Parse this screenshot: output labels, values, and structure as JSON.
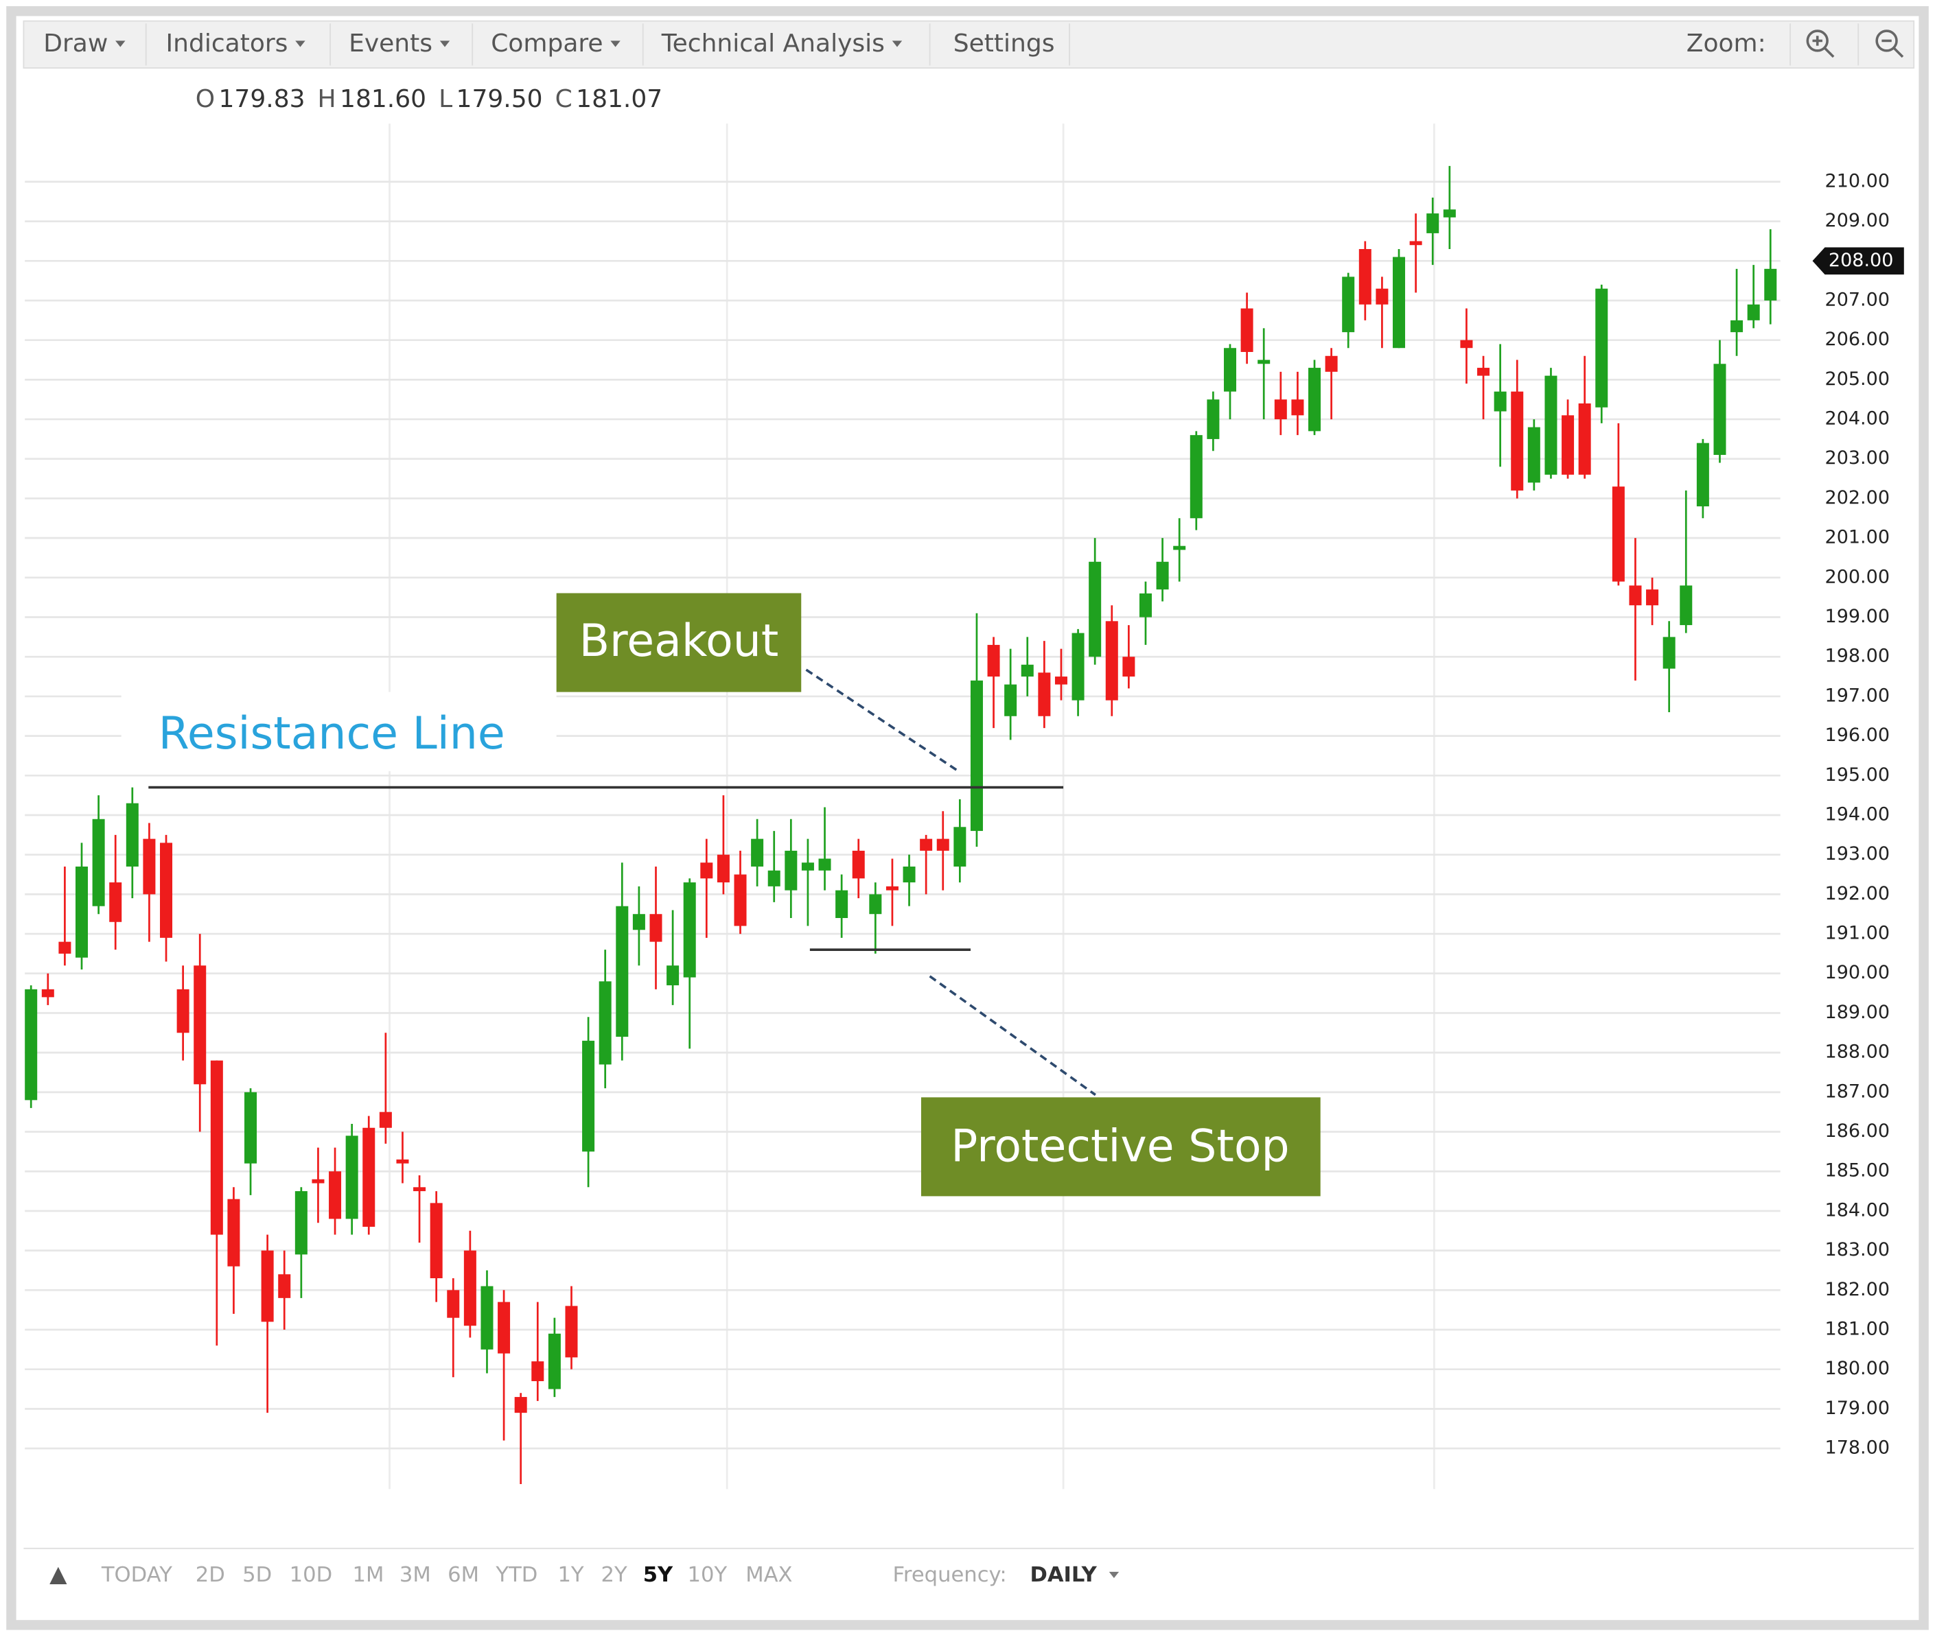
{
  "toolbar": {
    "menus": [
      "Draw",
      "Indicators",
      "Events",
      "Compare",
      "Technical Analysis",
      "Settings"
    ],
    "zoom_label": "Zoom:"
  },
  "chart_data": {
    "type": "candlestick",
    "ohlc_readout": [
      {
        "label": "O",
        "value": "179.83"
      },
      {
        "label": "H",
        "value": "181.60"
      },
      {
        "label": "L",
        "value": "179.50"
      },
      {
        "label": "C",
        "value": "181.07"
      }
    ],
    "up_color": "#1fa11f",
    "down_color": "#ee1c1c",
    "open": [
      186.8,
      189.6,
      190.8,
      190.4,
      191.7,
      192.3,
      192.7,
      193.4,
      193.3,
      189.6,
      190.2,
      187.8,
      184.3,
      185.2,
      183.0,
      182.4,
      182.9,
      184.8,
      185.0,
      183.8,
      186.1,
      186.5,
      185.3,
      184.6,
      184.2,
      182.0,
      183.0,
      180.5,
      181.7,
      179.3,
      180.2,
      179.5,
      181.6,
      185.5,
      187.7,
      188.4,
      191.1,
      191.5,
      189.7,
      189.9,
      192.8,
      193.0,
      192.5,
      192.7,
      192.2,
      192.1,
      192.6,
      192.6,
      191.4,
      193.1,
      191.5,
      192.2,
      192.3,
      193.4,
      193.4,
      192.7,
      193.6,
      198.3,
      196.5,
      197.5,
      197.6,
      197.5,
      196.9,
      198.0,
      198.9,
      198.0,
      199.0,
      199.7,
      200.7,
      201.5,
      203.5,
      204.7,
      206.8,
      205.4,
      204.5,
      204.5,
      203.7,
      205.6,
      206.2,
      208.3,
      207.3,
      205.8,
      208.5,
      208.7,
      209.1,
      206.0,
      205.3,
      204.2,
      204.7,
      202.4,
      202.6,
      204.1,
      204.4,
      204.3,
      202.3,
      199.8,
      199.7,
      197.7,
      198.8,
      201.8,
      203.1,
      206.2,
      206.5,
      207.0
    ],
    "high": [
      189.7,
      190.0,
      192.7,
      193.3,
      194.5,
      193.5,
      194.7,
      193.8,
      193.5,
      190.2,
      191.0,
      187.8,
      184.6,
      187.1,
      183.4,
      183.0,
      184.6,
      185.6,
      185.6,
      186.2,
      186.4,
      188.5,
      186.0,
      184.9,
      184.5,
      182.3,
      183.5,
      182.5,
      182.0,
      179.4,
      181.7,
      181.3,
      182.1,
      188.9,
      190.6,
      192.8,
      192.2,
      192.7,
      191.6,
      192.4,
      193.4,
      194.5,
      193.1,
      193.9,
      193.6,
      193.9,
      193.4,
      194.2,
      192.5,
      193.4,
      192.3,
      192.9,
      193.0,
      193.5,
      194.1,
      194.4,
      199.1,
      198.5,
      198.2,
      198.5,
      198.4,
      198.2,
      198.7,
      201.0,
      199.3,
      198.8,
      199.9,
      201.0,
      201.5,
      203.7,
      204.7,
      205.9,
      207.2,
      206.3,
      205.2,
      205.2,
      205.5,
      205.8,
      207.7,
      208.5,
      207.6,
      208.3,
      209.2,
      209.6,
      210.4,
      206.8,
      205.6,
      205.9,
      205.5,
      204.0,
      205.3,
      204.5,
      205.6,
      207.4,
      203.9,
      201.0,
      200.0,
      198.9,
      202.2,
      203.5,
      206.0,
      207.8,
      207.9,
      208.8
    ],
    "low": [
      186.6,
      189.2,
      190.2,
      190.1,
      191.5,
      190.6,
      191.9,
      190.8,
      190.3,
      187.8,
      186.0,
      180.6,
      181.4,
      184.4,
      178.9,
      181.0,
      181.8,
      183.7,
      183.4,
      183.4,
      183.4,
      185.7,
      184.7,
      183.2,
      181.7,
      179.8,
      180.8,
      179.9,
      178.2,
      177.1,
      179.2,
      179.3,
      180.0,
      184.6,
      187.1,
      187.8,
      190.2,
      189.6,
      189.2,
      188.1,
      190.9,
      192.0,
      191.0,
      192.2,
      191.8,
      191.4,
      191.2,
      192.1,
      190.9,
      191.9,
      190.5,
      191.2,
      191.7,
      192.0,
      192.1,
      192.3,
      193.2,
      196.2,
      195.9,
      197.0,
      196.2,
      196.9,
      196.5,
      197.8,
      196.5,
      197.2,
      198.3,
      199.4,
      199.9,
      201.2,
      203.2,
      204.0,
      205.4,
      204.0,
      203.6,
      203.6,
      203.6,
      204.0,
      205.8,
      206.5,
      205.8,
      205.8,
      207.2,
      207.9,
      208.3,
      204.9,
      204.0,
      202.8,
      202.0,
      202.2,
      202.5,
      202.5,
      202.5,
      203.9,
      199.8,
      197.4,
      198.8,
      196.6,
      198.6,
      201.5,
      202.9,
      205.6,
      206.3,
      206.4
    ],
    "close": [
      189.6,
      189.4,
      190.5,
      192.7,
      193.9,
      191.3,
      194.3,
      192.0,
      190.9,
      188.5,
      187.2,
      183.4,
      182.6,
      187.0,
      181.2,
      181.8,
      184.5,
      184.7,
      183.8,
      185.9,
      183.6,
      186.1,
      185.2,
      184.5,
      182.3,
      181.3,
      181.1,
      182.1,
      180.4,
      178.9,
      179.7,
      180.9,
      180.3,
      188.3,
      189.8,
      191.7,
      191.5,
      190.8,
      190.2,
      192.3,
      192.4,
      192.3,
      191.2,
      193.4,
      192.6,
      193.1,
      192.8,
      192.9,
      192.1,
      192.4,
      192.0,
      192.1,
      192.7,
      193.1,
      193.1,
      193.7,
      197.4,
      197.5,
      197.3,
      197.8,
      196.5,
      197.3,
      198.6,
      200.4,
      196.9,
      197.5,
      199.6,
      200.4,
      200.8,
      203.6,
      204.5,
      205.8,
      205.7,
      205.5,
      204.0,
      204.1,
      205.3,
      205.2,
      207.6,
      206.9,
      206.9,
      208.1,
      208.4,
      209.2,
      209.3,
      205.8,
      205.1,
      204.7,
      202.2,
      203.8,
      205.1,
      202.6,
      202.6,
      207.3,
      199.9,
      199.3,
      199.3,
      198.5,
      199.8,
      203.4,
      205.4,
      206.5,
      206.9,
      207.8
    ],
    "ylim": [
      177.13,
      211.47
    ],
    "yticks": [
      {
        "value": 210,
        "label": "210.00"
      },
      {
        "value": 209,
        "label": "209.00"
      },
      {
        "value": 207,
        "label": "207.00"
      },
      {
        "value": 206,
        "label": "206.00"
      },
      {
        "value": 205,
        "label": "205.00"
      },
      {
        "value": 204,
        "label": "204.00"
      },
      {
        "value": 203,
        "label": "203.00"
      },
      {
        "value": 202,
        "label": "202.00"
      },
      {
        "value": 201,
        "label": "201.00"
      },
      {
        "value": 200,
        "label": "200.00"
      },
      {
        "value": 199,
        "label": "199.00"
      },
      {
        "value": 198,
        "label": "198.00"
      },
      {
        "value": 197,
        "label": "197.00"
      },
      {
        "value": 196,
        "label": "196.00"
      },
      {
        "value": 195,
        "label": "195.00"
      },
      {
        "value": 194,
        "label": "194.00"
      },
      {
        "value": 193,
        "label": "193.00"
      },
      {
        "value": 192,
        "label": "192.00"
      },
      {
        "value": 191,
        "label": "191.00"
      },
      {
        "value": 190,
        "label": "190.00"
      },
      {
        "value": 189,
        "label": "189.00"
      },
      {
        "value": 188,
        "label": "188.00"
      },
      {
        "value": 187,
        "label": "187.00"
      },
      {
        "value": 186,
        "label": "186.00"
      },
      {
        "value": 185,
        "label": "185.00"
      },
      {
        "value": 184,
        "label": "184.00"
      },
      {
        "value": 183,
        "label": "183.00"
      },
      {
        "value": 182,
        "label": "182.00"
      },
      {
        "value": 181,
        "label": "181.00"
      },
      {
        "value": 180,
        "label": "180.00"
      },
      {
        "value": 179,
        "label": "179.00"
      },
      {
        "value": 178,
        "label": "178.00"
      }
    ],
    "last_price": {
      "value": 208,
      "label": "208.00"
    },
    "grid": true,
    "annotations": [
      {
        "text": "Resistance Line",
        "value": 194.7
      },
      {
        "text": "Breakout"
      },
      {
        "text": "Protective Stop",
        "value": 190.6
      }
    ]
  },
  "footer": {
    "ranges": [
      {
        "label": "TODAY",
        "active": false
      },
      {
        "label": "2D",
        "active": false
      },
      {
        "label": "5D",
        "active": false
      },
      {
        "label": "10D",
        "active": false
      },
      {
        "label": "1M",
        "active": false
      },
      {
        "label": "3M",
        "active": false
      },
      {
        "label": "6M",
        "active": false
      },
      {
        "label": "YTD",
        "active": false
      },
      {
        "label": "1Y",
        "active": false
      },
      {
        "label": "2Y",
        "active": false
      },
      {
        "label": "5Y",
        "active": true
      },
      {
        "label": "10Y",
        "active": false
      },
      {
        "label": "MAX",
        "active": false
      }
    ],
    "frequency_label": "Frequency:",
    "frequency": "DAILY"
  }
}
